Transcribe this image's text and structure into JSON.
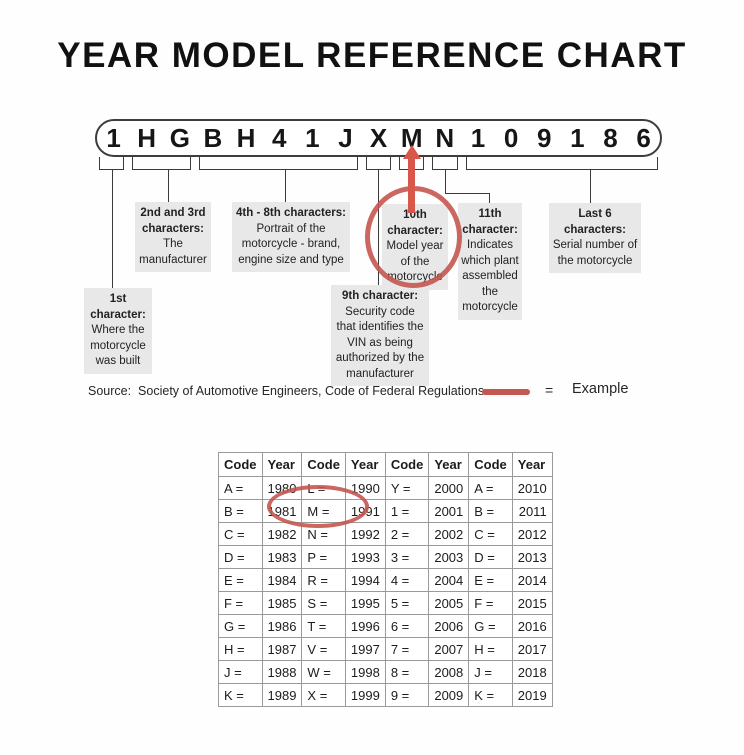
{
  "title": "YEAR MODEL REFERENCE CHART",
  "vin": {
    "characters": [
      "1",
      "H",
      "G",
      "B",
      "H",
      "4",
      "1",
      "J",
      "X",
      "M",
      "N",
      "1",
      "0",
      "9",
      "1",
      "8",
      "6"
    ]
  },
  "callouts": {
    "first": {
      "header": "1st character:",
      "body": "Where the motorcycle was built"
    },
    "second_third": {
      "header": "2nd and 3rd characters:",
      "body": "The manufacturer"
    },
    "fourth_eighth": {
      "header": "4th - 8th characters:",
      "body": "Portrait of the motorcycle - brand, engine size and type"
    },
    "ninth": {
      "header": "9th character:",
      "body": "Security code that identifies the VIN as being authorized by the manufacturer"
    },
    "tenth": {
      "header": "10th character:",
      "body": "Model year of the motorcycle"
    },
    "eleventh": {
      "header": "11th character:",
      "body": "Indicates which plant assembled the motorcycle"
    },
    "last_six": {
      "header": "Last 6 characters:",
      "body": "Serial number of the motorcycle"
    }
  },
  "source": {
    "label": "Source:",
    "text": "Society of Automotive Engineers, Code of Federal Regulations"
  },
  "legend": {
    "equals": "=",
    "label": "Example"
  },
  "colors": {
    "accent_red": "#c4574f",
    "arrow_red": "#d9564b",
    "box_gray": "#e8e8e8"
  },
  "table": {
    "headers": [
      "Code",
      "Year",
      "Code",
      "Year",
      "Code",
      "Year",
      "Code",
      "Year"
    ],
    "rows": [
      [
        "A =",
        "1980",
        "L =",
        "1990",
        "Y =",
        "2000",
        "A =",
        "2010"
      ],
      [
        "B =",
        "1981",
        "M =",
        "1991",
        "1 =",
        "2001",
        "B =",
        "2011"
      ],
      [
        "C =",
        "1982",
        "N =",
        "1992",
        "2 =",
        "2002",
        "C =",
        "2012"
      ],
      [
        "D =",
        "1983",
        "P =",
        "1993",
        "3 =",
        "2003",
        "D =",
        "2013"
      ],
      [
        "E =",
        "1984",
        "R =",
        "1994",
        "4 =",
        "2004",
        "E =",
        "2014"
      ],
      [
        "F =",
        "1985",
        "S =",
        "1995",
        "5 =",
        "2005",
        "F =",
        "2015"
      ],
      [
        "G =",
        "1986",
        "T =",
        "1996",
        "6 =",
        "2006",
        "G =",
        "2016"
      ],
      [
        "H =",
        "1987",
        "V =",
        "1997",
        "7 =",
        "2007",
        "H =",
        "2017"
      ],
      [
        "J =",
        "1988",
        "W =",
        "1998",
        "8 =",
        "2008",
        "J =",
        "2018"
      ],
      [
        "K =",
        "1989",
        "X =",
        "1999",
        "9 =",
        "2009",
        "K =",
        "2019"
      ]
    ]
  }
}
